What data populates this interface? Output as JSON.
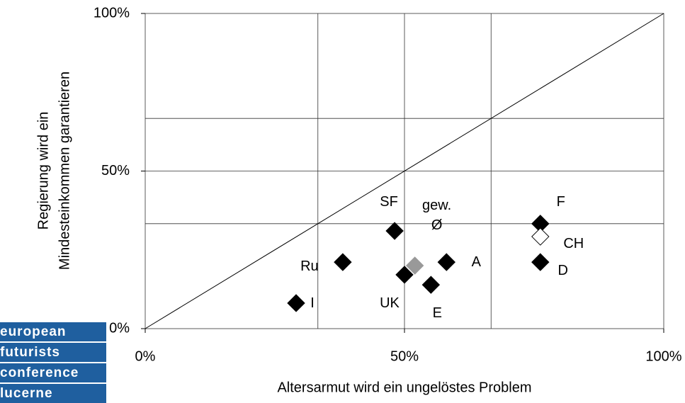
{
  "chart_data": {
    "type": "scatter",
    "xlabel": "Altersarmut wird ein ungelöstes Problem",
    "ylabel": [
      "Regierung wird ein",
      "Mindesteinkommen garantieren"
    ],
    "labels": [
      "I",
      "Ru",
      "SF",
      "UK",
      "gew. Ø",
      "E",
      "A",
      "F",
      "CH",
      "D"
    ],
    "x": [
      29.1,
      38.1,
      48.1,
      50.0,
      52.0,
      55.1,
      58.1,
      76.2,
      76.2,
      76.2
    ],
    "y": [
      8.1,
      21.1,
      31.0,
      17.1,
      20.0,
      13.9,
      21.1,
      33.3,
      29.2,
      21.1
    ],
    "colors": [
      "#000000",
      "#000000",
      "#000000",
      "#000000",
      "#999999",
      "#000000",
      "#000000",
      "#000000",
      "#ffffff",
      "#000000"
    ],
    "xlim": [
      0,
      100
    ],
    "ylim": [
      0,
      100
    ],
    "xticks": [
      {
        "value": 0,
        "label": "0%"
      },
      {
        "value": 50,
        "label": "50%"
      },
      {
        "value": 100,
        "label": "100%"
      }
    ],
    "yticks": [
      {
        "value": 0,
        "label": "0%"
      },
      {
        "value": 50,
        "label": "50%"
      },
      {
        "value": 100,
        "label": "100%"
      }
    ],
    "xgrid": [
      33.3,
      50,
      66.7
    ],
    "ygrid": [
      33.3,
      50,
      66.7
    ],
    "diagonal": true,
    "grid": true
  },
  "logo": [
    "european",
    "futurists",
    "conference",
    "lucerne"
  ]
}
